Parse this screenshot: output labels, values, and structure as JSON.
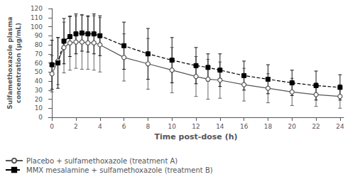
{
  "chart_data": {
    "type": "line",
    "xlabel": "Time post-dose (h)",
    "ylabel": "Sulfamethoxazole plasma\nconcentration (µg/mL)",
    "x": [
      0,
      0.5,
      1,
      1.5,
      2,
      2.5,
      3,
      3.5,
      4,
      6,
      8,
      10,
      12,
      13,
      14,
      16,
      18,
      20,
      22,
      24
    ],
    "series": [
      {
        "name": "Placebo + sulfamethoxazole (treatment A)",
        "color": "#555555",
        "marker": "open_circle",
        "line_style": "solid",
        "values": [
          48,
          62,
          77,
          82,
          83,
          83,
          82,
          82,
          80,
          66,
          59,
          52,
          45,
          42,
          41,
          36,
          32,
          28,
          25,
          23
        ],
        "error_lower": [
          20,
          26,
          28,
          30,
          29,
          30,
          29,
          30,
          30,
          26,
          28,
          25,
          22,
          22,
          20,
          18,
          16,
          15,
          13,
          13
        ],
        "error_upper": [
          20,
          26,
          28,
          30,
          29,
          30,
          29,
          30,
          30,
          26,
          28,
          25,
          22,
          22,
          20,
          18,
          16,
          15,
          13,
          13
        ]
      },
      {
        "name": "MMX mesalamine + sulfamethoxazole (treatment B)",
        "color": "#000000",
        "marker": "square",
        "line_style": "dashed",
        "values": [
          58,
          60,
          84,
          89,
          92,
          93,
          92,
          92,
          90,
          79,
          70,
          63,
          57,
          55,
          52,
          46,
          42,
          38,
          35,
          33
        ],
        "error_lower": [
          27,
          28,
          25,
          22,
          22,
          20,
          20,
          22,
          22,
          26,
          28,
          25,
          20,
          15,
          18,
          16,
          16,
          14,
          16,
          14
        ],
        "error_upper": [
          27,
          28,
          25,
          22,
          22,
          20,
          20,
          22,
          22,
          26,
          28,
          25,
          20,
          15,
          18,
          16,
          16,
          14,
          16,
          14
        ]
      }
    ],
    "xlim": [
      -0.3,
      24.3
    ],
    "xticks": [
      0,
      2,
      4,
      6,
      8,
      10,
      12,
      14,
      16,
      18,
      20,
      22,
      24
    ],
    "ylim": [
      0,
      120
    ],
    "yticks": [
      0,
      10,
      20,
      30,
      40,
      50,
      60,
      70,
      80,
      90,
      100,
      110,
      120
    ],
    "grid": false,
    "legend": "lower left"
  }
}
